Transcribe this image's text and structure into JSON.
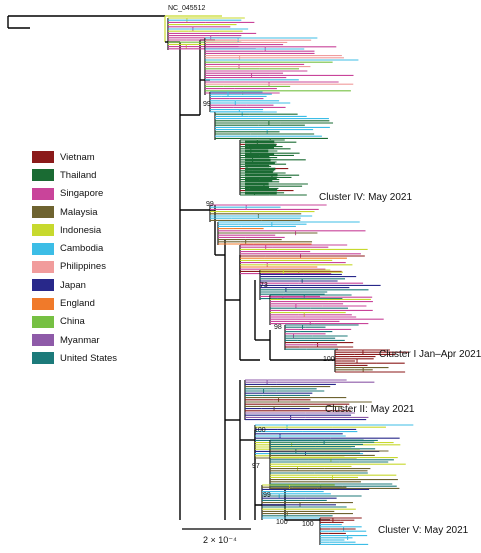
{
  "reference_label": "NC_045512",
  "bootstrap": [
    {
      "id": "b99a",
      "value": "99"
    },
    {
      "id": "b99b",
      "value": "99"
    },
    {
      "id": "b73",
      "value": "73"
    },
    {
      "id": "b98",
      "value": "98"
    },
    {
      "id": "b100a",
      "value": "100"
    },
    {
      "id": "b100b",
      "value": "100"
    },
    {
      "id": "b97",
      "value": "97"
    },
    {
      "id": "b99c",
      "value": "99"
    },
    {
      "id": "b100c",
      "value": "100"
    },
    {
      "id": "b100d",
      "value": "100"
    }
  ],
  "clusters": [
    {
      "id": "c4",
      "label": "Cluster IV: May 2021"
    },
    {
      "id": "c1",
      "label": "Cluster I Jan–Apr 2021"
    },
    {
      "id": "c2",
      "label": "Cluster II: May 2021"
    },
    {
      "id": "c5",
      "label": "Cluster V: May 2021"
    }
  ],
  "legend": [
    {
      "label": "Vietnam",
      "color": "#8b1a1a"
    },
    {
      "label": "Thailand",
      "color": "#1a6b33"
    },
    {
      "label": "Singapore",
      "color": "#c9449a"
    },
    {
      "label": "Malaysia",
      "color": "#6e6330"
    },
    {
      "label": "Indonesia",
      "color": "#c7d92e"
    },
    {
      "label": "Cambodia",
      "color": "#3cbde6"
    },
    {
      "label": "Philippines",
      "color": "#f19c9c"
    },
    {
      "label": "Japan",
      "color": "#28288a"
    },
    {
      "label": "England",
      "color": "#f07a2a"
    },
    {
      "label": "China",
      "color": "#76c043"
    },
    {
      "label": "Myanmar",
      "color": "#8e5aa8"
    },
    {
      "label": "United States",
      "color": "#1c7a7a"
    }
  ],
  "scale_bar": {
    "label": "2 × 10⁻⁴"
  }
}
